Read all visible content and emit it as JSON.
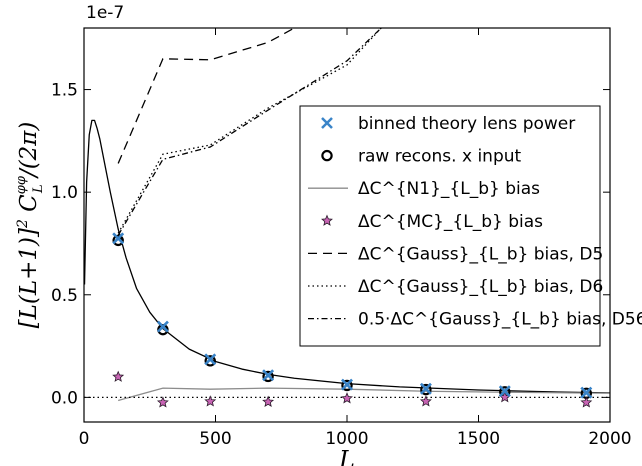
{
  "chart_data": {
    "type": "line",
    "xlabel": "L",
    "ylabel": "[L(L+1)]² C_L^{φφ}/(2π)",
    "scale_label": "1e-7",
    "xlim": [
      0,
      2000
    ],
    "ylim": [
      -0.12,
      1.8
    ],
    "x_ticks": [
      "0",
      "500",
      "1000",
      "1500",
      "2000"
    ],
    "y_ticks": [
      "0.0",
      "0.5",
      "1.0",
      "1.5"
    ],
    "y_tick_values": [
      0.0,
      0.5,
      1.0,
      1.5
    ],
    "x_tick_values": [
      0,
      500,
      1000,
      1500,
      2000
    ],
    "legend_position": "upper-right",
    "legend": [
      "binned theory lens power",
      "raw recons. x input",
      "ΔC^{N1}_{L_b} bias",
      "ΔC^{MC}_{L_b} bias",
      "ΔC^{Gauss}_{L_b} bias, D5",
      "ΔC^{Gauss}_{L_b} bias, D6",
      "0.5·ΔC^{Gauss}_{L_b} bias, D56"
    ],
    "series": [
      {
        "name": "theory lens power",
        "style": "solid",
        "color": "#000000",
        "x": [
          2,
          10,
          20,
          30,
          40,
          50,
          60,
          80,
          100,
          130,
          160,
          200,
          250,
          300,
          400,
          500,
          600,
          700,
          800,
          1000,
          1200,
          1500,
          1800,
          2000
        ],
        "y": [
          0.55,
          1.05,
          1.28,
          1.35,
          1.35,
          1.31,
          1.26,
          1.13,
          1.0,
          0.82,
          0.68,
          0.53,
          0.415,
          0.335,
          0.235,
          0.175,
          0.138,
          0.112,
          0.093,
          0.067,
          0.051,
          0.036,
          0.026,
          0.022
        ]
      },
      {
        "name": "binned theory lens power",
        "style": "x-marker",
        "color": "#3a84c8",
        "x": [
          130,
          300,
          480,
          700,
          1000,
          1300,
          1600,
          1910
        ],
        "y": [
          0.775,
          0.345,
          0.185,
          0.108,
          0.062,
          0.042,
          0.03,
          0.023
        ]
      },
      {
        "name": "raw recons. x input",
        "style": "circle-marker",
        "color": "#000000",
        "x": [
          130,
          300,
          480,
          700,
          1000,
          1300,
          1600,
          1910
        ],
        "y": [
          0.765,
          0.33,
          0.178,
          0.102,
          0.058,
          0.038,
          0.027,
          0.02
        ]
      },
      {
        "name": "N1 bias",
        "style": "solid-gray",
        "color": "#8c8c8c",
        "x": [
          130,
          300,
          480,
          700,
          1000,
          1300,
          1600,
          2000
        ],
        "y": [
          -0.015,
          0.045,
          0.04,
          0.045,
          0.04,
          0.03,
          0.025,
          0.02
        ]
      },
      {
        "name": "MC bias",
        "style": "star-marker",
        "color": "#8a3a7a",
        "x": [
          130,
          300,
          480,
          700,
          1000,
          1300,
          1600,
          1910
        ],
        "y": [
          0.1,
          -0.025,
          -0.02,
          -0.022,
          -0.005,
          -0.02,
          0.0,
          -0.025
        ]
      },
      {
        "name": "Gauss bias D5",
        "style": "dashed",
        "color": "#000000",
        "x": [
          130,
          300,
          480,
          700,
          800
        ],
        "y": [
          1.14,
          1.65,
          1.645,
          1.73,
          1.8
        ]
      },
      {
        "name": "Gauss bias D6",
        "style": "dotted",
        "color": "#000000",
        "x": [
          130,
          300,
          480,
          700,
          1000,
          1130
        ],
        "y": [
          0.8,
          1.185,
          1.23,
          1.41,
          1.62,
          1.8
        ]
      },
      {
        "name": "0.5 Gauss bias D56",
        "style": "dashdot",
        "color": "#000000",
        "x": [
          130,
          300,
          480,
          700,
          1000,
          1130
        ],
        "y": [
          0.79,
          1.16,
          1.22,
          1.4,
          1.64,
          1.8
        ]
      },
      {
        "name": "zero line",
        "style": "dotted",
        "color": "#000000",
        "x": [
          0,
          2000
        ],
        "y": [
          0,
          0
        ]
      }
    ]
  }
}
